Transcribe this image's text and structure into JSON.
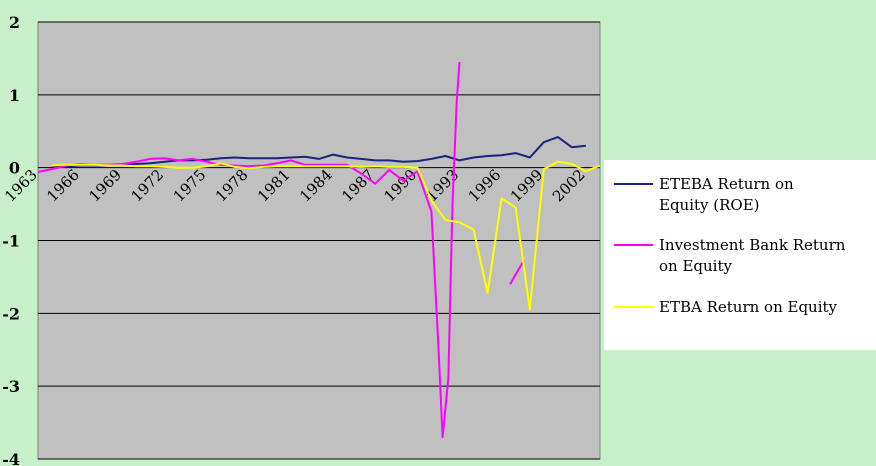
{
  "chart_data": {
    "type": "line",
    "title": "",
    "xlabel": "",
    "ylabel": "",
    "ylim": [
      -4,
      2
    ],
    "yticks": [
      2,
      1,
      0,
      -1,
      -2,
      -3,
      -4
    ],
    "xlim": [
      1963,
      2003
    ],
    "xticks": [
      1963,
      1966,
      1969,
      1972,
      1975,
      1978,
      1981,
      1984,
      1987,
      1990,
      1993,
      1996,
      1999,
      2002
    ],
    "grid": true,
    "legend": "right",
    "colors": {
      "plot_background": "#c0c0c0",
      "page_background": "#c8f0c8",
      "legend_background": "#ffffff",
      "gridline": "#000000"
    },
    "series": [
      {
        "name": "ETEBA Return on Equity (ROE)",
        "color": "#1a237e",
        "points": [
          [
            1964,
            0.01
          ],
          [
            1965,
            0.02
          ],
          [
            1966,
            0.03
          ],
          [
            1967,
            0.03
          ],
          [
            1968,
            0.03
          ],
          [
            1969,
            0.03
          ],
          [
            1970,
            0.05
          ],
          [
            1971,
            0.06
          ],
          [
            1972,
            0.08
          ],
          [
            1973,
            0.1
          ],
          [
            1974,
            0.1
          ],
          [
            1975,
            0.11
          ],
          [
            1976,
            0.13
          ],
          [
            1977,
            0.14
          ],
          [
            1978,
            0.13
          ],
          [
            1979,
            0.13
          ],
          [
            1980,
            0.13
          ],
          [
            1981,
            0.14
          ],
          [
            1982,
            0.15
          ],
          [
            1983,
            0.12
          ],
          [
            1984,
            0.18
          ],
          [
            1985,
            0.14
          ],
          [
            1986,
            0.12
          ],
          [
            1987,
            0.1
          ],
          [
            1988,
            0.1
          ],
          [
            1989,
            0.08
          ],
          [
            1990,
            0.09
          ],
          [
            1991,
            0.12
          ],
          [
            1992,
            0.16
          ],
          [
            1993,
            0.1
          ],
          [
            1994,
            0.14
          ],
          [
            1995,
            0.16
          ],
          [
            1996,
            0.17
          ],
          [
            1997,
            0.2
          ],
          [
            1998,
            0.14
          ],
          [
            1999,
            0.35
          ],
          [
            2000,
            0.42
          ],
          [
            2001,
            0.28
          ],
          [
            2002,
            0.3
          ]
        ]
      },
      {
        "name": "Investment Bank Return on Equity",
        "color": "#ff00ff",
        "segments": [
          [
            [
              1963,
              -0.06
            ],
            [
              1964,
              -0.02
            ],
            [
              1965,
              0.03
            ],
            [
              1966,
              0.05
            ],
            [
              1967,
              0.04
            ],
            [
              1968,
              0.04
            ],
            [
              1969,
              0.05
            ],
            [
              1970,
              0.08
            ],
            [
              1971,
              0.12
            ],
            [
              1972,
              0.13
            ],
            [
              1973,
              0.1
            ],
            [
              1974,
              0.12
            ],
            [
              1975,
              0.08
            ],
            [
              1976,
              0.04
            ],
            [
              1977,
              0.03
            ],
            [
              1978,
              0.02
            ],
            [
              1979,
              0.03
            ],
            [
              1980,
              0.06
            ],
            [
              1981,
              0.1
            ],
            [
              1982,
              0.04
            ],
            [
              1983,
              0.04
            ],
            [
              1984,
              0.04
            ],
            [
              1985,
              0.04
            ],
            [
              1986,
              -0.08
            ],
            [
              1987,
              -0.22
            ],
            [
              1988,
              -0.03
            ],
            [
              1989,
              -0.18
            ],
            [
              1990,
              -0.05
            ],
            [
              1991,
              -0.6
            ],
            [
              1991.5,
              -2.45
            ],
            [
              1991.8,
              -3.7
            ],
            [
              1992.2,
              -2.9
            ],
            [
              1992.5,
              -0.5
            ],
            [
              1992.8,
              0.9
            ],
            [
              1993,
              1.45
            ]
          ],
          [
            [
              1996.6,
              -1.6
            ],
            [
              1997.5,
              -1.3
            ]
          ]
        ]
      },
      {
        "name": "ETBA Return on Equity",
        "color": "#ffff00",
        "points": [
          [
            1964,
            0.03
          ],
          [
            1965,
            0.04
          ],
          [
            1966,
            0.04
          ],
          [
            1967,
            0.04
          ],
          [
            1968,
            0.03
          ],
          [
            1969,
            0.03
          ],
          [
            1970,
            0.02
          ],
          [
            1971,
            0.02
          ],
          [
            1972,
            0.01
          ],
          [
            1973,
            0.0
          ],
          [
            1974,
            0.0
          ],
          [
            1975,
            0.02
          ],
          [
            1976,
            0.06
          ],
          [
            1977,
            0.01
          ],
          [
            1978,
            -0.01
          ],
          [
            1979,
            0.01
          ],
          [
            1980,
            0.02
          ],
          [
            1981,
            0.02
          ],
          [
            1982,
            0.02
          ],
          [
            1983,
            0.02
          ],
          [
            1984,
            0.02
          ],
          [
            1985,
            0.02
          ],
          [
            1986,
            0.01
          ],
          [
            1987,
            0.02
          ],
          [
            1988,
            0.01
          ],
          [
            1989,
            0.01
          ],
          [
            1990,
            0.0
          ],
          [
            1991,
            -0.45
          ],
          [
            1992,
            -0.72
          ],
          [
            1993,
            -0.75
          ],
          [
            1994,
            -0.85
          ],
          [
            1995,
            -1.72
          ],
          [
            1996,
            -0.42
          ],
          [
            1997,
            -0.55
          ],
          [
            1998,
            -1.95
          ],
          [
            1999,
            -0.02
          ],
          [
            2000,
            0.08
          ],
          [
            2001,
            0.05
          ],
          [
            2002,
            -0.05
          ],
          [
            2003,
            0.03
          ]
        ]
      }
    ]
  }
}
